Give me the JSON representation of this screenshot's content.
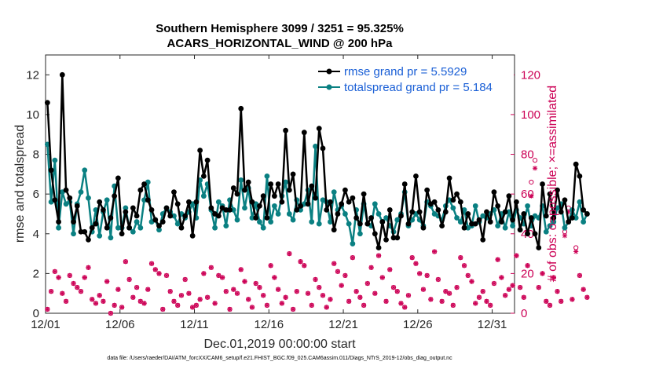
{
  "chart_data": {
    "type": "line",
    "title": "Southern Hemisphere 3099 / 3251 = 95.325%",
    "subtitle": "ACARS_HORIZONTAL_WIND @ 200 hPa",
    "xlabel": "Dec.01,2019 00:00:00 start",
    "ylabel": "rmse and totalspread",
    "ylabel_right": "# of obs: o=possible; ×=assimilated",
    "footer": "data file: /Users/raeder/DAI/ATM_forcXX/CAM6_setup/f.e21.FHIST_BGC.f09_025.CAM6assim.011/Diags_NTrS_2019-12/obs_diag_output.nc",
    "xlim": [
      0,
      31.5
    ],
    "ylim": [
      0,
      13
    ],
    "ylim_right": [
      0,
      130
    ],
    "x_ticks": [
      {
        "pos": 0,
        "label": "12/01"
      },
      {
        "pos": 5,
        "label": "12/06"
      },
      {
        "pos": 10,
        "label": "12/11"
      },
      {
        "pos": 15,
        "label": "12/16"
      },
      {
        "pos": 20,
        "label": "12/21"
      },
      {
        "pos": 25,
        "label": "12/26"
      },
      {
        "pos": 30,
        "label": "12/31"
      }
    ],
    "y_ticks": [
      "0",
      "2",
      "4",
      "6",
      "8",
      "10",
      "12"
    ],
    "y_ticks_right": [
      "0",
      "20",
      "40",
      "60",
      "80",
      "100",
      "120"
    ],
    "legend_position": "top-right",
    "series": [
      {
        "name": "rmse grand pr = 5.5929",
        "color": "#000000",
        "values": [
          10.6,
          7.2,
          5.7,
          4.6,
          12.0,
          6.2,
          5.8,
          4.6,
          5.4,
          4.1,
          4.1,
          3.7,
          4.3,
          4.5,
          5.6,
          5.2,
          4.3,
          4.8,
          5.9,
          6.8,
          4.0,
          5.1,
          4.3,
          5.3,
          4.9,
          6.2,
          6.5,
          5.7,
          5.2,
          4.7,
          4.4,
          4.6,
          5.3,
          4.9,
          6.1,
          5.5,
          4.3,
          4.9,
          5.6,
          3.9,
          5.6,
          8.2,
          6.9,
          7.7,
          5.3,
          5.0,
          4.9,
          5.3,
          5.2,
          5.2,
          6.3,
          6.0,
          10.3,
          6.2,
          6.6,
          5.6,
          4.8,
          5.4,
          5.9,
          4.8,
          6.5,
          5.9,
          6.5,
          5.6,
          9.2,
          6.2,
          7.0,
          5.2,
          5.4,
          9.1,
          5.5,
          6.4,
          5.8,
          9.3,
          8.3,
          5.2,
          5.6,
          4.2,
          5.0,
          5.5,
          6.2,
          5.6,
          5.8,
          4.8,
          4.5,
          6.0,
          4.5,
          4.8,
          4.0,
          3.3,
          4.6,
          3.7,
          5.2,
          3.8,
          3.8,
          4.9,
          6.5,
          4.5,
          5.1,
          6.9,
          5.1,
          4.3,
          6.2,
          5.5,
          5.6,
          5.2,
          4.4,
          5.1,
          6.8,
          5.7,
          6.0,
          5.6,
          4.3,
          5.0,
          4.5,
          4.5,
          4.7,
          3.7,
          5.1,
          4.6,
          6.1,
          5.4,
          4.6,
          5.1,
          5.9,
          4.7,
          5.6,
          4.2,
          5.0,
          4.0,
          4.8,
          4.0,
          3.3,
          6.5,
          4.9,
          6.0,
          4.8,
          6.2,
          5.1,
          5.7,
          4.6,
          4.8,
          7.5,
          6.9,
          5.2,
          5.0
        ]
      },
      {
        "name": "totalspread grand pr = 5.184",
        "color": "#0a8082",
        "values": [
          8.5,
          5.6,
          7.7,
          4.3,
          6.1,
          5.5,
          5.6,
          4.0,
          5.5,
          6.1,
          7.2,
          5.8,
          4.1,
          5.2,
          3.9,
          5.1,
          5.7,
          3.8,
          6.4,
          4.3,
          4.3,
          5.3,
          4.3,
          4.1,
          4.6,
          4.3,
          5.7,
          6.6,
          4.6,
          4.7,
          4.2,
          5.0,
          5.3,
          5.1,
          4.9,
          4.5,
          5.0,
          4.8,
          5.1,
          5.5,
          4.8,
          6.7,
          5.9,
          6.5,
          5.2,
          4.3,
          5.6,
          5.4,
          4.4,
          5.7,
          5.2,
          4.7,
          6.7,
          5.3,
          6.3,
          4.8,
          5.5,
          4.6,
          4.3,
          6.9,
          4.6,
          5.4,
          5.0,
          5.9,
          6.6,
          5.0,
          4.7,
          5.7,
          5.2,
          5.5,
          6.2,
          4.6,
          8.4,
          4.5,
          5.7,
          5.6,
          4.6,
          6.1,
          5.2,
          5.4,
          5.0,
          4.5,
          3.5,
          5.2,
          4.0,
          5.5,
          4.5,
          4.4,
          5.5,
          5.0,
          4.6,
          4.8,
          4.4,
          4.1,
          4.7,
          5.0,
          6.1,
          4.4,
          4.7,
          5.0,
          4.7,
          4.4,
          5.6,
          5.4,
          5.0,
          4.9,
          4.7,
          5.4,
          5.7,
          5.3,
          4.8,
          4.6,
          5.2,
          4.3,
          4.4,
          5.4,
          4.6,
          4.9,
          4.8,
          5.0,
          5.2,
          4.4,
          5.0,
          4.3,
          5.1,
          4.4,
          5.2,
          4.8,
          4.5,
          5.4,
          4.4,
          4.9,
          4.8,
          5.4,
          4.1,
          4.4,
          4.6,
          5.3,
          5.5,
          4.3,
          4.6,
          5.2,
          4.8,
          5.6,
          4.6,
          5.0
        ]
      }
    ],
    "obs_possible": [
      2,
      11,
      21,
      18,
      10,
      6,
      19,
      15,
      13,
      11,
      18,
      23,
      7,
      5,
      9,
      6,
      16,
      0,
      4,
      12,
      3,
      26,
      17,
      8,
      13,
      6,
      5,
      12,
      25,
      22,
      20,
      2,
      19,
      11,
      6,
      4,
      9,
      17,
      10,
      3,
      4,
      7,
      20,
      8,
      23,
      5,
      19,
      18,
      11,
      2,
      12,
      10,
      22,
      16,
      7,
      3,
      15,
      13,
      9,
      4,
      24,
      18,
      12,
      5,
      8,
      30,
      2,
      11,
      26,
      24,
      10,
      4,
      17,
      13,
      9,
      3,
      7,
      25,
      21,
      14,
      19,
      6,
      28,
      11,
      8,
      4,
      15,
      23,
      10,
      29,
      18,
      6,
      22,
      13,
      11,
      5,
      3,
      9,
      28,
      25,
      20,
      12,
      19,
      7,
      31,
      17,
      6,
      11,
      10,
      4,
      13,
      28,
      24,
      19,
      16,
      5,
      8,
      11,
      6,
      4,
      15,
      27,
      18,
      9,
      12,
      14,
      29,
      13,
      8,
      24,
      66,
      77,
      13,
      20,
      6,
      4,
      18,
      11,
      6,
      41,
      53,
      7,
      33,
      19,
      12,
      8
    ],
    "obs_assimilated": [
      2,
      11,
      21,
      18,
      10,
      6,
      19,
      15,
      13,
      11,
      18,
      23,
      7,
      5,
      9,
      6,
      16,
      0,
      4,
      12,
      3,
      26,
      17,
      8,
      13,
      6,
      5,
      12,
      25,
      22,
      20,
      2,
      19,
      11,
      6,
      4,
      9,
      17,
      10,
      3,
      4,
      7,
      20,
      8,
      23,
      5,
      19,
      18,
      11,
      2,
      12,
      10,
      22,
      16,
      7,
      3,
      15,
      13,
      9,
      4,
      24,
      18,
      12,
      5,
      8,
      30,
      2,
      11,
      26,
      24,
      10,
      4,
      17,
      13,
      9,
      3,
      7,
      25,
      21,
      14,
      19,
      6,
      28,
      11,
      8,
      4,
      15,
      23,
      10,
      29,
      18,
      6,
      22,
      13,
      11,
      5,
      3,
      9,
      28,
      25,
      20,
      12,
      19,
      7,
      31,
      17,
      6,
      11,
      10,
      4,
      13,
      28,
      24,
      19,
      16,
      5,
      8,
      11,
      6,
      4,
      15,
      27,
      18,
      9,
      12,
      14,
      29,
      13,
      8,
      24,
      59,
      73,
      13,
      20,
      6,
      4,
      18,
      11,
      6,
      39,
      51,
      7,
      31,
      19,
      12,
      8
    ]
  }
}
